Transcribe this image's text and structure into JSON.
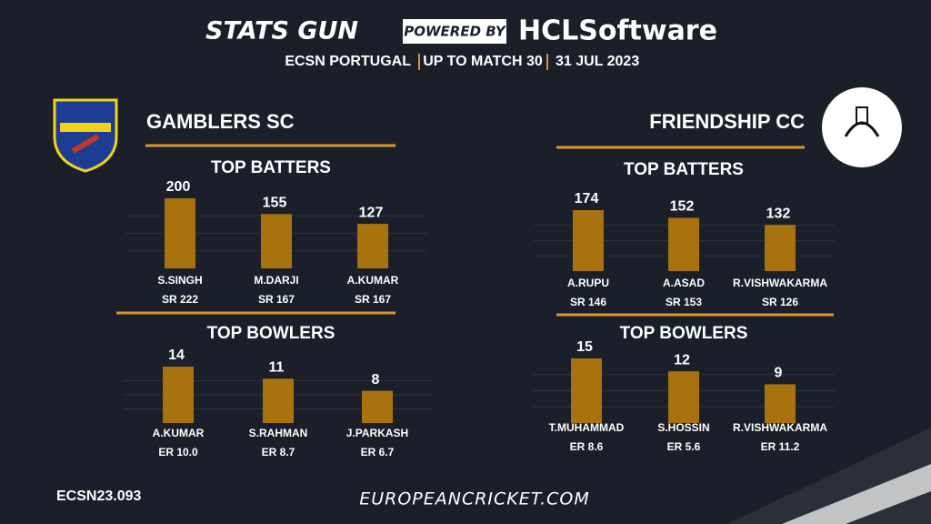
{
  "header": {
    "brand": "STATS GUN",
    "powered": "POWERED BY",
    "sponsor": "HCLSoftware",
    "subtitle": [
      "ECSN  PORTUGAL",
      "UP TO MATCH  30",
      "31 JUL 2023"
    ]
  },
  "teams": [
    {
      "name": "GAMBLERS SC"
    },
    {
      "name": "FRIENDSHIP CC"
    }
  ],
  "chart_data": [
    {
      "type": "bar",
      "title": "TOP BATTERS",
      "color": "#a8720f",
      "categories": [
        "S.SINGH",
        "M.DARJI",
        "A.KUMAR"
      ],
      "values": [
        200,
        155,
        127
      ],
      "sublabels": [
        "SR 222",
        "SR 167",
        "SR 167"
      ]
    },
    {
      "type": "bar",
      "title": "TOP BOWLERS",
      "color": "#a8720f",
      "categories": [
        "A.KUMAR",
        "S.RAHMAN",
        "J.PARKASH"
      ],
      "values": [
        14,
        11,
        8
      ],
      "sublabels": [
        "ER 10.0",
        "ER 8.7",
        "ER 6.7"
      ]
    },
    {
      "type": "bar",
      "title": "TOP BATTERS",
      "color": "#a8720f",
      "categories": [
        "A.RUPU",
        "A.ASAD",
        "R.VISHWAKARMA"
      ],
      "values": [
        174,
        152,
        132
      ],
      "sublabels": [
        "SR 146",
        "SR 153",
        "SR 126"
      ]
    },
    {
      "type": "bar",
      "title": "TOP BOWLERS",
      "color": "#a8720f",
      "categories": [
        "T.MUHAMMAD",
        "S.HOSSIN",
        "R.VISHWAKARMA"
      ],
      "values": [
        15,
        12,
        9
      ],
      "sublabels": [
        "ER 8.6",
        "ER 5.6",
        "ER 11.2"
      ]
    }
  ],
  "footer": {
    "code": "ECSN23.093",
    "site": "EUROPEANCRICKET.COM"
  }
}
